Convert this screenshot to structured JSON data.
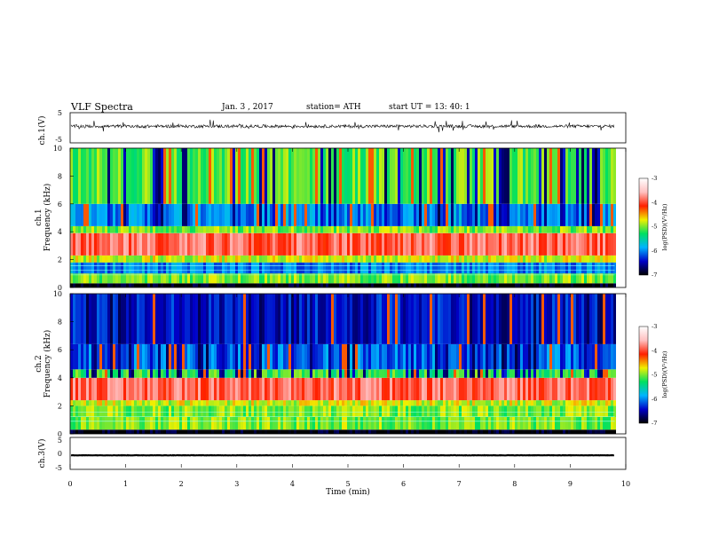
{
  "header": {
    "title": "VLF  Spectra",
    "date": "Jan. 3  , 2017",
    "station": "station= ATH",
    "start": "start  UT  =   13: 40: 1"
  },
  "x_axis": {
    "label": "Time  (min)",
    "ticks": [
      "0",
      "1",
      "2",
      "3",
      "4",
      "5",
      "6",
      "7",
      "8",
      "9",
      "10"
    ]
  },
  "panels": {
    "ch1_wave": {
      "label": "ch.1(V)",
      "ticks": [
        "5",
        "0",
        "-5"
      ]
    },
    "ch1_spec": {
      "label_ch": "ch.1",
      "label_freq": "Frequency  (kHz)",
      "ticks": [
        "10",
        "8",
        "6",
        "4",
        "2",
        "0"
      ]
    },
    "ch2_spec": {
      "label_ch": "ch.2",
      "label_freq": "Frequency  (kHz)",
      "ticks": [
        "10",
        "8",
        "6",
        "4",
        "2",
        "0"
      ]
    },
    "ch3_wave": {
      "label": "ch.3(V)",
      "ticks": [
        "5",
        "0",
        "-5"
      ]
    }
  },
  "colorbar": {
    "label": "log(PSD)(V²/Hz)",
    "ticks": [
      "-3",
      "-4",
      "-5",
      "-6",
      "-7"
    ],
    "colors": [
      "#000000",
      "#0000c8",
      "#00b4ff",
      "#00e060",
      "#f0f000",
      "#ff2000",
      "#ffc0c0",
      "#ffffff"
    ]
  },
  "chart_data": {
    "type": "heatmap",
    "title": "VLF  Spectra",
    "xlabel": "Time  (min)",
    "xlim": [
      0,
      10
    ],
    "data_extent_min": 9.8,
    "series": [
      {
        "name": "ch.1(V)",
        "kind": "waveform",
        "ylim": [
          -5,
          5
        ],
        "mean": 0.5,
        "spread": 1.0
      },
      {
        "name": "ch.1",
        "kind": "spectrogram",
        "ylabel": "Frequency  (kHz)",
        "ylim": [
          0,
          10
        ],
        "bands": [
          {
            "f": [
              0,
              0.3
            ],
            "log_psd": -7.0
          },
          {
            "f": [
              0.3,
              1.0
            ],
            "log_psd": -5.0
          },
          {
            "f": [
              1.0,
              1.8
            ],
            "log_psd": -6.0
          },
          {
            "f": [
              1.8,
              2.3
            ],
            "log_psd": -4.8
          },
          {
            "f": [
              2.3,
              3.9
            ],
            "log_psd": -3.9
          },
          {
            "f": [
              3.9,
              4.4
            ],
            "log_psd": -5.0
          },
          {
            "f": [
              4.4,
              6.0
            ],
            "log_psd": -6.0
          },
          {
            "f": [
              6.0,
              10.0
            ],
            "log_psd": -5.1
          }
        ]
      },
      {
        "name": "ch.2",
        "kind": "spectrogram",
        "ylabel": "Frequency  (kHz)",
        "ylim": [
          0,
          10
        ],
        "bands": [
          {
            "f": [
              0,
              0.3
            ],
            "log_psd": -7.0
          },
          {
            "f": [
              0.3,
              1.2
            ],
            "log_psd": -5.0
          },
          {
            "f": [
              1.2,
              2.0
            ],
            "log_psd": -5.0
          },
          {
            "f": [
              2.0,
              2.4
            ],
            "log_psd": -4.8
          },
          {
            "f": [
              2.4,
              4.0
            ],
            "log_psd": -3.9
          },
          {
            "f": [
              4.0,
              4.6
            ],
            "log_psd": -5.2
          },
          {
            "f": [
              4.6,
              6.4
            ],
            "log_psd": -6.1
          },
          {
            "f": [
              6.4,
              10.0
            ],
            "log_psd": -6.4
          }
        ]
      },
      {
        "name": "ch.3(V)",
        "kind": "waveform",
        "ylim": [
          -5,
          5
        ],
        "mean": -0.6,
        "spread": 0.1
      }
    ],
    "colorbar_range": [
      -7,
      -3
    ],
    "legend": "right"
  }
}
